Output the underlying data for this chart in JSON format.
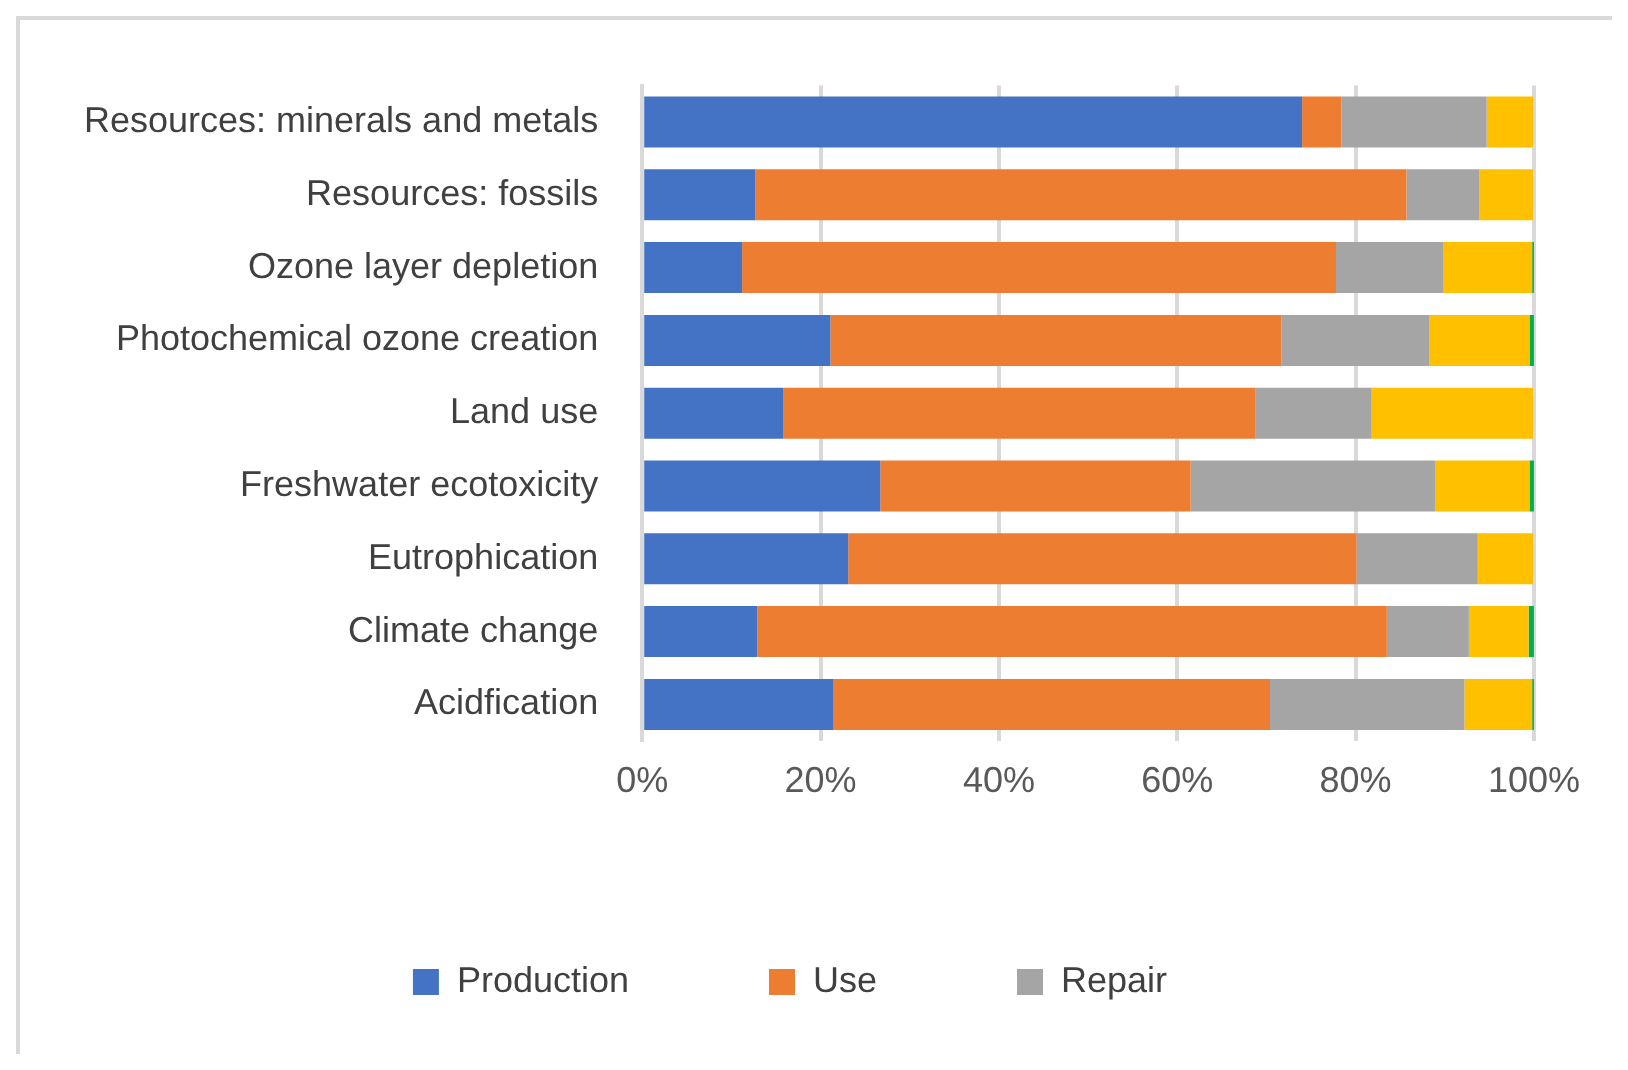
{
  "chart_data": {
    "type": "bar",
    "orientation": "horizontal",
    "stacked": true,
    "categories": [
      "Resources: minerals and metals",
      "Resources: fossils",
      "Ozone layer depletion",
      "Photochemical ozone creation",
      "Land use",
      "Freshwater ecotoxicity",
      "Eutrophication",
      "Climate change",
      "Acidfication"
    ],
    "series": [
      {
        "name": "Production",
        "color": "#4472c4",
        "values": [
          74.0,
          12.7,
          11.2,
          21.1,
          15.8,
          26.7,
          23.1,
          12.9,
          21.4
        ]
      },
      {
        "name": "Use",
        "color": "#ed7d31",
        "values": [
          4.4,
          73.0,
          66.6,
          50.6,
          53.0,
          34.8,
          57.0,
          70.6,
          49.0
        ]
      },
      {
        "name": "Repair",
        "color": "#a5a5a5",
        "values": [
          16.3,
          8.2,
          12.0,
          16.6,
          13.0,
          27.4,
          13.6,
          9.2,
          21.8
        ]
      },
      {
        "color": "#ffc000",
        "values": [
          5.2,
          6.0,
          10.0,
          11.2,
          18.1,
          10.6,
          6.2,
          6.7,
          7.6
        ]
      },
      {
        "color": "#00b050",
        "values": [
          null,
          null,
          0.2,
          0.5,
          null,
          0.5,
          null,
          0.6,
          0.2
        ]
      }
    ],
    "xlim": [
      0,
      100
    ],
    "xticks": [
      {
        "value": 0,
        "label": "0%"
      },
      {
        "value": 20,
        "label": "20%"
      },
      {
        "value": 40,
        "label": "40%"
      },
      {
        "value": 60,
        "label": "60%"
      },
      {
        "value": 80,
        "label": "80%"
      },
      {
        "value": 100,
        "label": "100%"
      }
    ],
    "grid": "x",
    "legend": "bottom"
  }
}
